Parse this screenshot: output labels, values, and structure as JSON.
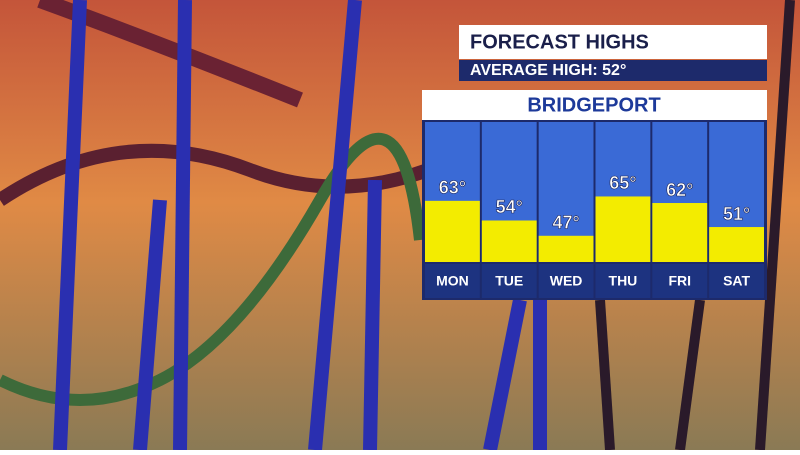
{
  "chart_data": {
    "type": "bar",
    "title": "FORECAST HIGHS",
    "subtitle": "AVERAGE HIGH: 52°",
    "location": "BRIDGEPORT",
    "categories": [
      "MON",
      "TUE",
      "WED",
      "THU",
      "FRI",
      "SAT"
    ],
    "values": [
      63,
      54,
      47,
      65,
      62,
      51
    ],
    "value_labels": [
      "63°",
      "54°",
      "47°",
      "65°",
      "62°",
      "51°"
    ],
    "color": "#f3ec00",
    "ylim": [
      35,
      100
    ]
  }
}
